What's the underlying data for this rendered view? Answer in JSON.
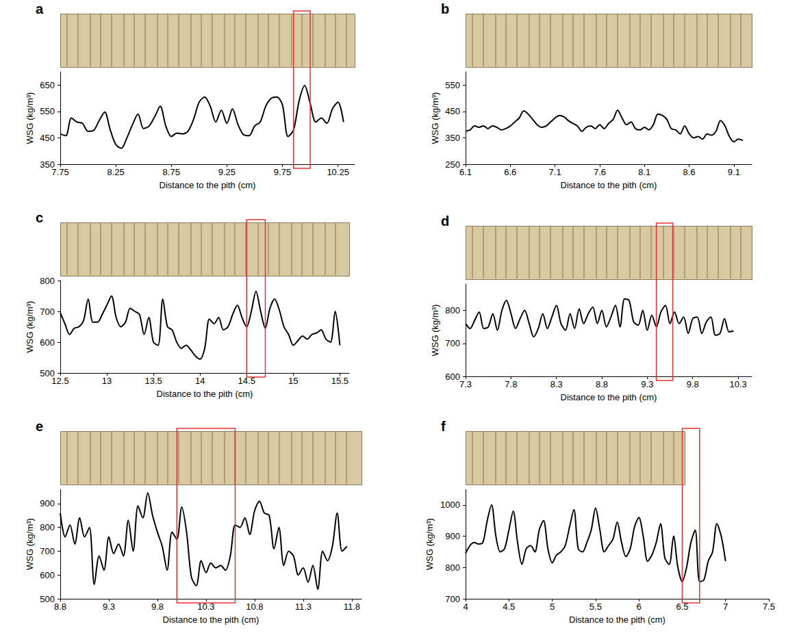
{
  "chart_data": [
    {
      "type": "line",
      "panel_label": "a",
      "x_label": "Distance to the pith (cm)",
      "y_label": "WSG (kg/m³)",
      "color": "#000000",
      "grid": false,
      "x": [
        7.75,
        7.8,
        7.85,
        7.9,
        7.95,
        8,
        8.05,
        8.1,
        8.15,
        8.2,
        8.25,
        8.3,
        8.35,
        8.4,
        8.45,
        8.5,
        8.55,
        8.6,
        8.65,
        8.7,
        8.75,
        8.8,
        8.85,
        8.9,
        8.95,
        9,
        9.05,
        9.1,
        9.15,
        9.2,
        9.25,
        9.3,
        9.35,
        9.4,
        9.45,
        9.5,
        9.55,
        9.6,
        9.65,
        9.7,
        9.75,
        9.8,
        9.85,
        9.9,
        9.95,
        10,
        10.05,
        10.1,
        10.15,
        10.2,
        10.25,
        10.3
      ],
      "values": [
        465,
        458,
        525,
        510,
        505,
        475,
        478,
        515,
        548,
        480,
        425,
        410,
        450,
        500,
        540,
        485,
        495,
        530,
        570,
        495,
        455,
        468,
        465,
        475,
        520,
        585,
        605,
        570,
        510,
        555,
        505,
        560,
        500,
        462,
        458,
        495,
        510,
        570,
        600,
        605,
        575,
        455,
        480,
        590,
        648,
        580,
        510,
        525,
        505,
        560,
        585,
        510
      ],
      "xlim": [
        7.75,
        10.4
      ],
      "xticks": [
        7.75,
        8.25,
        8.75,
        9.25,
        9.75,
        10.25
      ],
      "ylim": [
        350,
        700
      ],
      "yticks": [
        350,
        450,
        550,
        650
      ],
      "highlight_range": [
        9.85,
        10.0
      ]
    },
    {
      "type": "line",
      "panel_label": "b",
      "x_label": "Distance to the pith (cm)",
      "y_label": "WSG (kg/m³)",
      "color": "#000000",
      "grid": false,
      "x": [
        6.1,
        6.15,
        6.2,
        6.25,
        6.3,
        6.35,
        6.4,
        6.45,
        6.5,
        6.55,
        6.6,
        6.65,
        6.7,
        6.75,
        6.8,
        6.85,
        6.9,
        6.95,
        7,
        7.05,
        7.1,
        7.15,
        7.2,
        7.25,
        7.3,
        7.35,
        7.4,
        7.45,
        7.5,
        7.55,
        7.6,
        7.65,
        7.7,
        7.75,
        7.8,
        7.85,
        7.9,
        7.95,
        8,
        8.05,
        8.1,
        8.15,
        8.2,
        8.25,
        8.3,
        8.35,
        8.4,
        8.45,
        8.5,
        8.55,
        8.6,
        8.65,
        8.7,
        8.75,
        8.8,
        8.85,
        8.9,
        8.95,
        9,
        9.05,
        9.1,
        9.15,
        9.2
      ],
      "values": [
        375,
        380,
        395,
        390,
        395,
        385,
        395,
        390,
        380,
        385,
        395,
        410,
        425,
        452,
        440,
        420,
        400,
        390,
        395,
        410,
        425,
        435,
        430,
        415,
        405,
        395,
        375,
        390,
        395,
        385,
        400,
        385,
        405,
        420,
        455,
        425,
        400,
        410,
        385,
        380,
        390,
        380,
        400,
        440,
        435,
        420,
        385,
        380,
        365,
        395,
        365,
        350,
        355,
        345,
        365,
        360,
        375,
        415,
        395,
        355,
        335,
        345,
        340
      ],
      "xlim": [
        6.1,
        9.3
      ],
      "xticks": [
        6.1,
        6.6,
        7.1,
        7.6,
        8.1,
        8.6,
        9.1
      ],
      "ylim": [
        250,
        600
      ],
      "yticks": [
        250,
        350,
        450,
        550
      ]
    },
    {
      "type": "line",
      "panel_label": "c",
      "x_label": "Distance to the pith (cm)",
      "y_label": "WSG (kg/m³)",
      "color": "#000000",
      "grid": false,
      "x": [
        12.5,
        12.55,
        12.6,
        12.65,
        12.7,
        12.75,
        12.8,
        12.85,
        12.9,
        12.95,
        13,
        13.05,
        13.1,
        13.15,
        13.2,
        13.25,
        13.3,
        13.35,
        13.4,
        13.45,
        13.5,
        13.55,
        13.6,
        13.65,
        13.7,
        13.75,
        13.8,
        13.85,
        13.9,
        13.95,
        14,
        14.05,
        14.1,
        14.15,
        14.2,
        14.25,
        14.3,
        14.35,
        14.4,
        14.45,
        14.5,
        14.55,
        14.6,
        14.65,
        14.7,
        14.75,
        14.8,
        14.85,
        14.9,
        14.95,
        15,
        15.05,
        15.1,
        15.15,
        15.2,
        15.25,
        15.3,
        15.35,
        15.4,
        15.45,
        15.5
      ],
      "values": [
        695,
        660,
        625,
        645,
        650,
        670,
        740,
        665,
        665,
        690,
        720,
        750,
        680,
        650,
        665,
        710,
        700,
        690,
        625,
        680,
        600,
        590,
        740,
        650,
        640,
        600,
        580,
        590,
        575,
        555,
        545,
        580,
        675,
        660,
        680,
        640,
        650,
        690,
        720,
        680,
        650,
        700,
        765,
        700,
        645,
        710,
        740,
        705,
        650,
        625,
        590,
        605,
        620,
        610,
        625,
        630,
        640,
        610,
        600,
        700,
        590
      ],
      "xlim": [
        12.5,
        15.6
      ],
      "xticks": [
        12.5,
        13,
        13.5,
        14,
        14.5,
        15,
        15.5
      ],
      "ylim": [
        500,
        800
      ],
      "yticks": [
        500,
        600,
        700,
        800
      ],
      "highlight_range": [
        14.5,
        14.7
      ]
    },
    {
      "type": "line",
      "panel_label": "d",
      "x_label": "Distance to the pith (cm)",
      "y_label": "WSG (kg/m³)",
      "color": "#000000",
      "grid": false,
      "x": [
        7.3,
        7.35,
        7.4,
        7.45,
        7.5,
        7.55,
        7.6,
        7.65,
        7.7,
        7.75,
        7.8,
        7.85,
        7.9,
        7.95,
        8,
        8.05,
        8.1,
        8.15,
        8.2,
        8.25,
        8.3,
        8.35,
        8.4,
        8.45,
        8.5,
        8.55,
        8.6,
        8.65,
        8.7,
        8.75,
        8.8,
        8.85,
        8.9,
        8.95,
        9,
        9.05,
        9.1,
        9.15,
        9.2,
        9.25,
        9.3,
        9.35,
        9.4,
        9.45,
        9.5,
        9.55,
        9.6,
        9.65,
        9.7,
        9.75,
        9.8,
        9.85,
        9.9,
        9.95,
        10,
        10.05,
        10.1,
        10.15,
        10.2,
        10.25
      ],
      "values": [
        760,
        745,
        770,
        795,
        745,
        750,
        790,
        740,
        800,
        830,
        790,
        745,
        775,
        800,
        760,
        720,
        745,
        790,
        745,
        780,
        815,
        760,
        740,
        790,
        745,
        805,
        760,
        790,
        810,
        760,
        800,
        750,
        780,
        815,
        750,
        835,
        830,
        765,
        755,
        800,
        740,
        785,
        750,
        795,
        815,
        760,
        795,
        760,
        780,
        730,
        775,
        780,
        730,
        765,
        780,
        725,
        730,
        775,
        735,
        738
      ],
      "xlim": [
        7.3,
        10.45
      ],
      "xticks": [
        7.3,
        7.8,
        8.3,
        8.8,
        9.3,
        9.8,
        10.3
      ],
      "ylim": [
        600,
        880
      ],
      "yticks": [
        600,
        700,
        800
      ],
      "highlight_range": [
        9.4,
        9.58
      ]
    },
    {
      "type": "line",
      "panel_label": "e",
      "x_label": "Distance to the pith (cm)",
      "y_label": "WSG (kg/m³)",
      "color": "#000000",
      "grid": false,
      "x": [
        8.8,
        8.85,
        8.9,
        8.95,
        9,
        9.05,
        9.1,
        9.15,
        9.2,
        9.25,
        9.3,
        9.35,
        9.4,
        9.45,
        9.5,
        9.55,
        9.6,
        9.65,
        9.7,
        9.75,
        9.8,
        9.85,
        9.9,
        9.95,
        10,
        10.05,
        10.1,
        10.15,
        10.2,
        10.25,
        10.3,
        10.35,
        10.4,
        10.45,
        10.5,
        10.55,
        10.6,
        10.65,
        10.7,
        10.75,
        10.8,
        10.85,
        10.9,
        10.95,
        11,
        11.05,
        11.1,
        11.15,
        11.2,
        11.25,
        11.3,
        11.35,
        11.4,
        11.45,
        11.5,
        11.55,
        11.6,
        11.65,
        11.7,
        11.75
      ],
      "values": [
        860,
        760,
        810,
        730,
        840,
        760,
        800,
        560,
        680,
        620,
        760,
        690,
        730,
        680,
        830,
        700,
        890,
        840,
        945,
        850,
        780,
        720,
        620,
        780,
        750,
        885,
        780,
        590,
        555,
        660,
        610,
        650,
        630,
        640,
        620,
        680,
        810,
        800,
        840,
        770,
        870,
        910,
        860,
        850,
        710,
        800,
        640,
        700,
        680,
        600,
        630,
        570,
        640,
        540,
        700,
        660,
        720,
        860,
        700,
        720
      ],
      "xlim": [
        8.8,
        11.9
      ],
      "xticks": [
        8.8,
        9.3,
        9.8,
        10.3,
        10.8,
        11.3,
        11.8
      ],
      "ylim": [
        500,
        960
      ],
      "yticks": [
        500,
        600,
        700,
        800,
        900
      ],
      "highlight_range": [
        10.0,
        10.6
      ]
    },
    {
      "type": "line",
      "panel_label": "f",
      "x_label": "Distance to the pith (cm)",
      "y_label": "WSG (kg/m³)",
      "color": "#000000",
      "grid": false,
      "x": [
        4,
        4.05,
        4.1,
        4.15,
        4.2,
        4.25,
        4.3,
        4.35,
        4.4,
        4.45,
        4.5,
        4.55,
        4.6,
        4.65,
        4.7,
        4.75,
        4.8,
        4.85,
        4.9,
        4.95,
        5,
        5.05,
        5.1,
        5.15,
        5.2,
        5.25,
        5.3,
        5.35,
        5.4,
        5.45,
        5.5,
        5.55,
        5.6,
        5.65,
        5.7,
        5.75,
        5.8,
        5.85,
        5.9,
        5.95,
        6,
        6.05,
        6.1,
        6.15,
        6.2,
        6.25,
        6.3,
        6.35,
        6.4,
        6.45,
        6.5,
        6.55,
        6.6,
        6.65,
        6.7,
        6.75,
        6.8,
        6.85,
        6.9,
        6.95,
        7
      ],
      "values": [
        845,
        870,
        880,
        875,
        880,
        950,
        1000,
        900,
        850,
        860,
        920,
        980,
        880,
        810,
        860,
        870,
        850,
        920,
        950,
        860,
        815,
        840,
        850,
        870,
        930,
        985,
        860,
        850,
        880,
        920,
        990,
        920,
        850,
        870,
        890,
        945,
        880,
        835,
        860,
        930,
        960,
        900,
        820,
        840,
        880,
        940,
        830,
        810,
        900,
        800,
        755,
        800,
        880,
        920,
        755,
        760,
        820,
        850,
        940,
        900,
        820
      ],
      "xlim": [
        4,
        7.5
      ],
      "xticks": [
        4,
        4.5,
        5,
        5.5,
        6,
        6.5,
        7,
        7.5
      ],
      "ylim": [
        700,
        1050
      ],
      "yticks": [
        700,
        800,
        900,
        1000
      ],
      "highlight_range": [
        6.5,
        6.7
      ]
    }
  ]
}
